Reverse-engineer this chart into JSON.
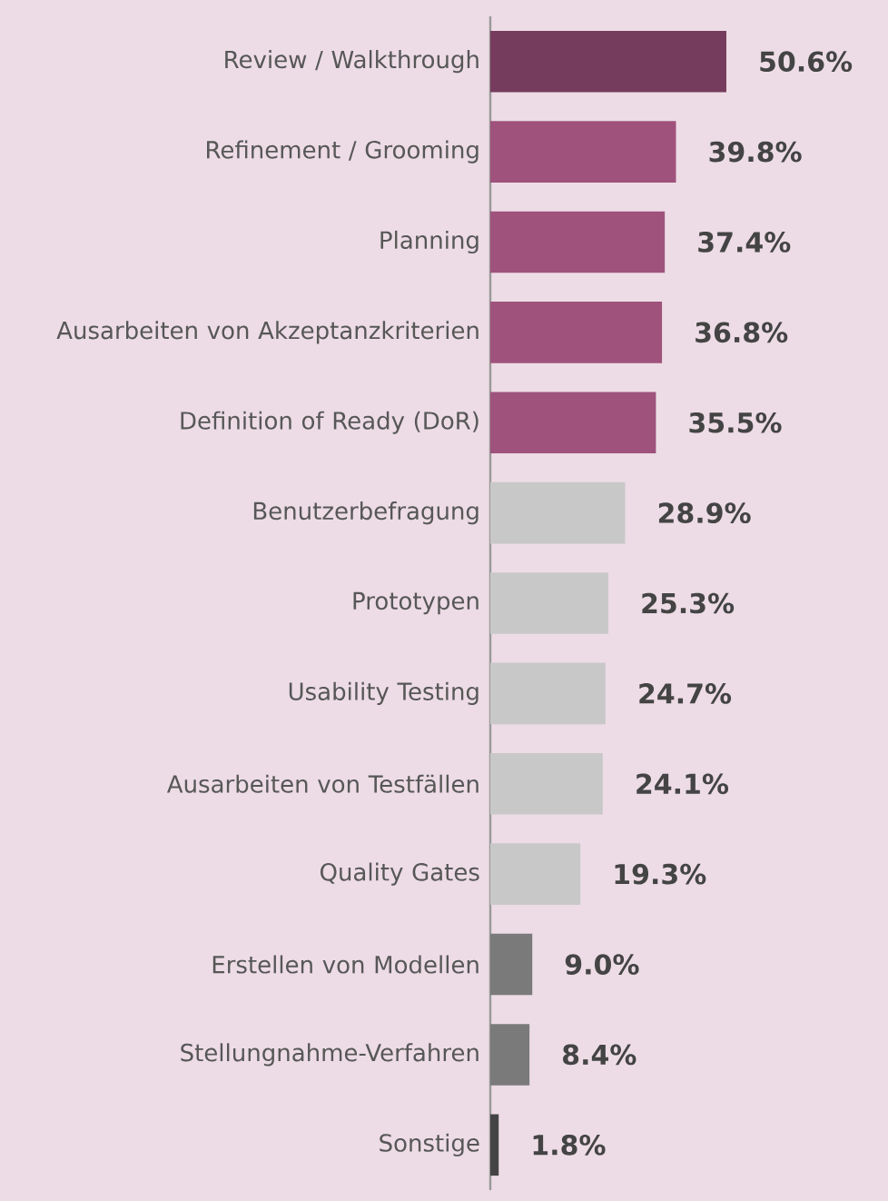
{
  "chart_data": {
    "type": "bar",
    "orientation": "horizontal",
    "categories": [
      "Review / Walkthrough",
      "Refinement / Grooming",
      "Planning",
      "Ausarbeiten von Akzeptanzkriterien",
      "Definition of Ready (DoR)",
      "Benutzerbefragung",
      "Prototypen",
      "Usability Testing",
      "Ausarbeiten von Testfällen",
      "Quality Gates",
      "Erstellen von Modellen",
      "Stellungnahme-Verfahren",
      "Sonstige"
    ],
    "values": [
      50.6,
      39.8,
      37.4,
      36.8,
      35.5,
      28.9,
      25.3,
      24.7,
      24.1,
      19.3,
      9.0,
      8.4,
      1.8
    ],
    "colors": [
      "#763c5e",
      "#9f527c",
      "#9f527c",
      "#9f527c",
      "#9f527c",
      "#c8c8c8",
      "#c8c8c8",
      "#c8c8c8",
      "#c8c8c8",
      "#c8c8c8",
      "#7a7a7a",
      "#7a7a7a",
      "#444444"
    ],
    "value_labels": [
      "50.6%",
      "39.8%",
      "37.4%",
      "36.8%",
      "35.5%",
      "28.9%",
      "25.3%",
      "24.7%",
      "24.1%",
      "19.3%",
      "9.0%",
      "8.4%",
      "1.8%"
    ]
  }
}
